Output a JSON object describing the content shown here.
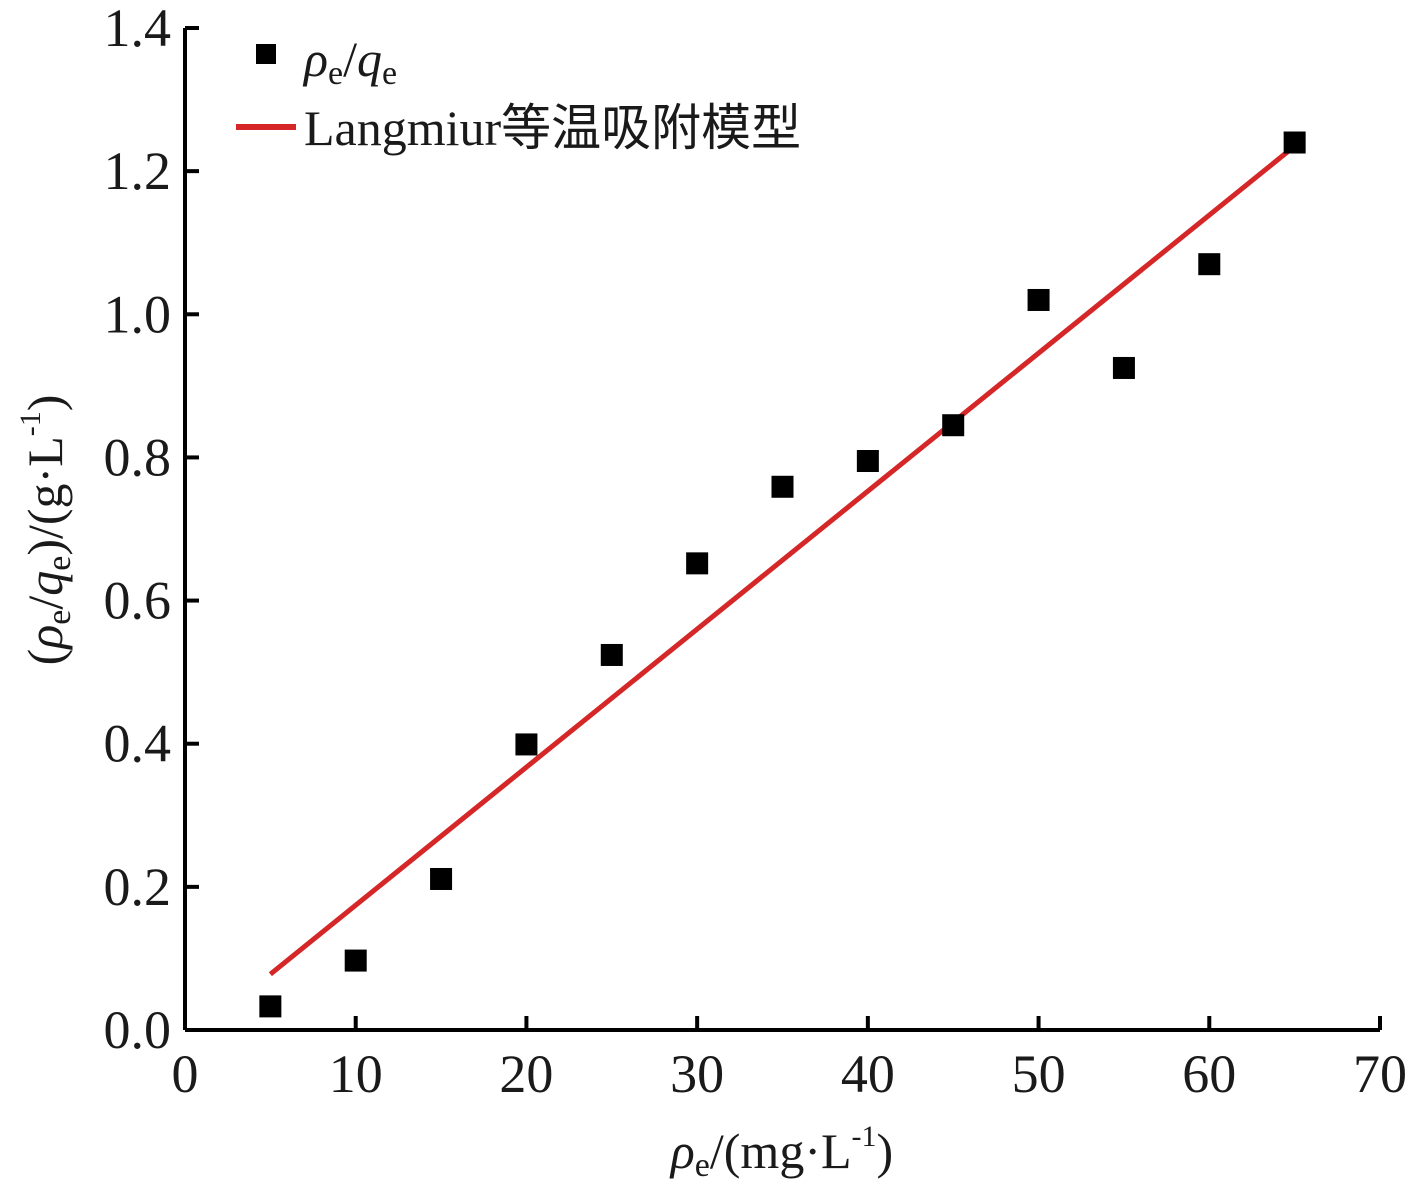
{
  "chart_data": {
    "type": "scatter",
    "x_axis": {
      "label": {
        "main": "ρ",
        "sub": "e",
        "rest": "/(mg·L",
        "sup": "-1",
        "close": ")"
      },
      "range": [
        0,
        70
      ],
      "ticks": [
        0,
        10,
        20,
        30,
        40,
        50,
        60,
        70
      ]
    },
    "y_axis": {
      "label": {
        "open": "(",
        "main": "ρ",
        "sub": "e",
        "slash": "/",
        "main2": "q",
        "sub2": "e",
        "rest": ")/(g·L",
        "sup": "-1",
        "close": ")"
      },
      "range": [
        0,
        1.4
      ],
      "ticks": [
        "0.0",
        "0.2",
        "0.4",
        "0.6",
        "0.8",
        "1.0",
        "1.2",
        "1.4"
      ]
    },
    "series": [
      {
        "kind": "scatter",
        "marker": "square",
        "color": "#000000",
        "legend": {
          "main": "ρ",
          "sub": "e",
          "slash": "/",
          "main2": "q",
          "sub2": "e"
        },
        "points": [
          {
            "x": 5,
            "y": 0.033
          },
          {
            "x": 10,
            "y": 0.097
          },
          {
            "x": 15,
            "y": 0.211
          },
          {
            "x": 20,
            "y": 0.399
          },
          {
            "x": 25,
            "y": 0.524
          },
          {
            "x": 30,
            "y": 0.652
          },
          {
            "x": 35,
            "y": 0.759
          },
          {
            "x": 40,
            "y": 0.795
          },
          {
            "x": 45,
            "y": 0.845
          },
          {
            "x": 50,
            "y": 1.02
          },
          {
            "x": 55,
            "y": 0.925
          },
          {
            "x": 60,
            "y": 1.07
          },
          {
            "x": 65,
            "y": 1.24
          }
        ]
      },
      {
        "kind": "line",
        "color": "#d62728",
        "legend": {
          "text": "Langmiur等温吸附模型"
        },
        "points": [
          {
            "x": 5,
            "y": 0.078
          },
          {
            "x": 65,
            "y": 1.235
          }
        ]
      }
    ],
    "grid": false,
    "legend_position": "top-left"
  }
}
